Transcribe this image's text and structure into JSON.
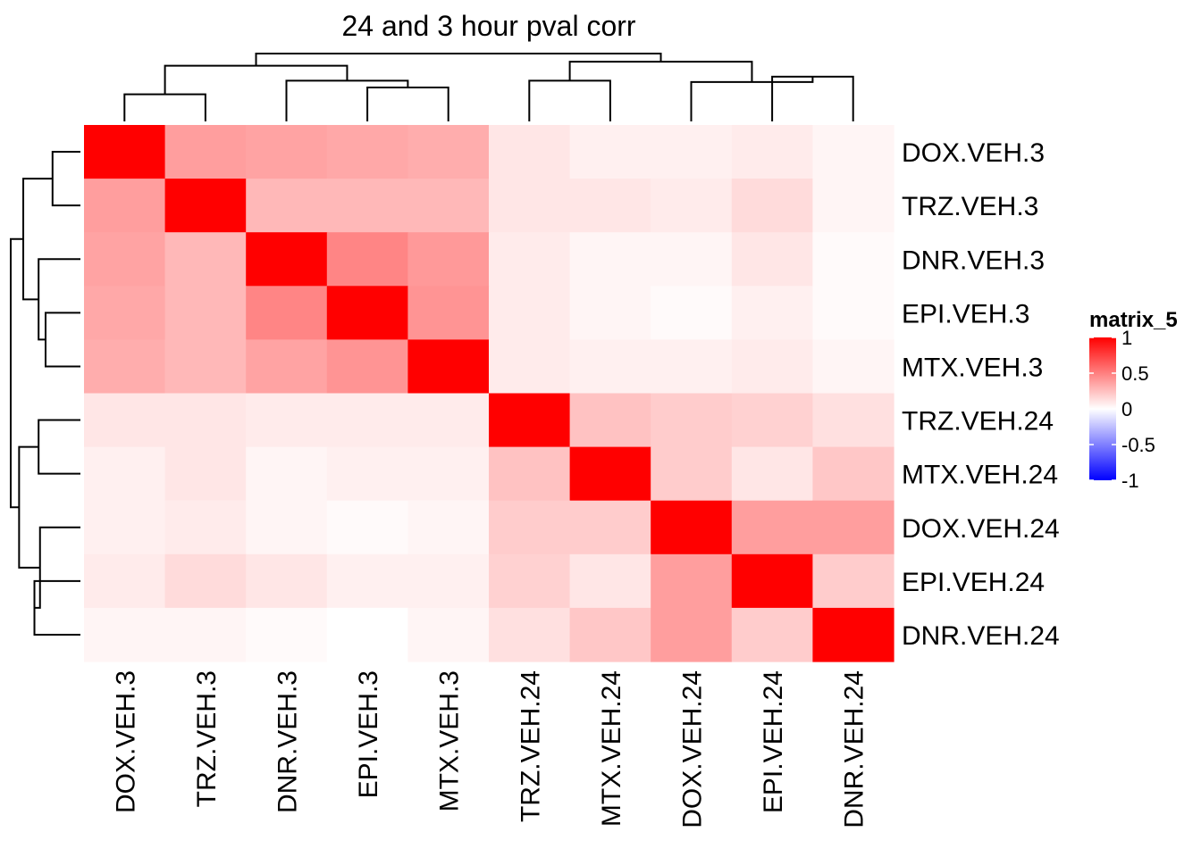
{
  "chart_data": {
    "type": "heatmap",
    "title": "24 and 3 hour pval corr",
    "rows": [
      "DOX.VEH.3",
      "TRZ.VEH.3",
      "DNR.VEH.3",
      "EPI.VEH.3",
      "MTX.VEH.3",
      "TRZ.VEH.24",
      "MTX.VEH.24",
      "DOX.VEH.24",
      "EPI.VEH.24",
      "DNR.VEH.24"
    ],
    "columns": [
      "DOX.VEH.3",
      "TRZ.VEH.3",
      "DNR.VEH.3",
      "EPI.VEH.3",
      "MTX.VEH.3",
      "TRZ.VEH.24",
      "MTX.VEH.24",
      "DOX.VEH.24",
      "EPI.VEH.24",
      "DNR.VEH.24"
    ],
    "values": [
      [
        1.0,
        0.38,
        0.36,
        0.34,
        0.32,
        0.1,
        0.06,
        0.06,
        0.08,
        0.04
      ],
      [
        0.38,
        1.0,
        0.28,
        0.28,
        0.28,
        0.1,
        0.1,
        0.08,
        0.14,
        0.04
      ],
      [
        0.36,
        0.28,
        1.0,
        0.48,
        0.4,
        0.08,
        0.04,
        0.04,
        0.1,
        0.02
      ],
      [
        0.34,
        0.28,
        0.48,
        1.0,
        0.42,
        0.08,
        0.04,
        0.02,
        0.06,
        0.02
      ],
      [
        0.32,
        0.28,
        0.36,
        0.42,
        1.0,
        0.08,
        0.06,
        0.06,
        0.08,
        0.04
      ],
      [
        0.1,
        0.1,
        0.08,
        0.08,
        0.08,
        1.0,
        0.24,
        0.2,
        0.18,
        0.12
      ],
      [
        0.06,
        0.1,
        0.04,
        0.06,
        0.06,
        0.24,
        1.0,
        0.2,
        0.1,
        0.22
      ],
      [
        0.06,
        0.08,
        0.04,
        0.02,
        0.04,
        0.2,
        0.2,
        1.0,
        0.38,
        0.38
      ],
      [
        0.08,
        0.14,
        0.1,
        0.06,
        0.06,
        0.18,
        0.1,
        0.38,
        1.0,
        0.2
      ],
      [
        0.04,
        0.04,
        0.02,
        0.0,
        0.04,
        0.12,
        0.22,
        0.38,
        0.2,
        1.0
      ]
    ],
    "legend": {
      "title": "matrix_5",
      "ticks": [
        "1",
        "0.5",
        "0",
        "-0.5",
        "-1"
      ],
      "tick_values": [
        1,
        0.5,
        0,
        -0.5,
        -1
      ],
      "placement": "right"
    },
    "colors": {
      "low": "#0000ff",
      "mid": "#ffffff",
      "high": "#ff0000"
    },
    "row_dendrogram_order": [
      0,
      1,
      2,
      3,
      4,
      5,
      6,
      7,
      8,
      9
    ],
    "col_dendrogram_order": [
      0,
      1,
      2,
      3,
      4,
      5,
      6,
      7,
      8,
      9
    ]
  }
}
